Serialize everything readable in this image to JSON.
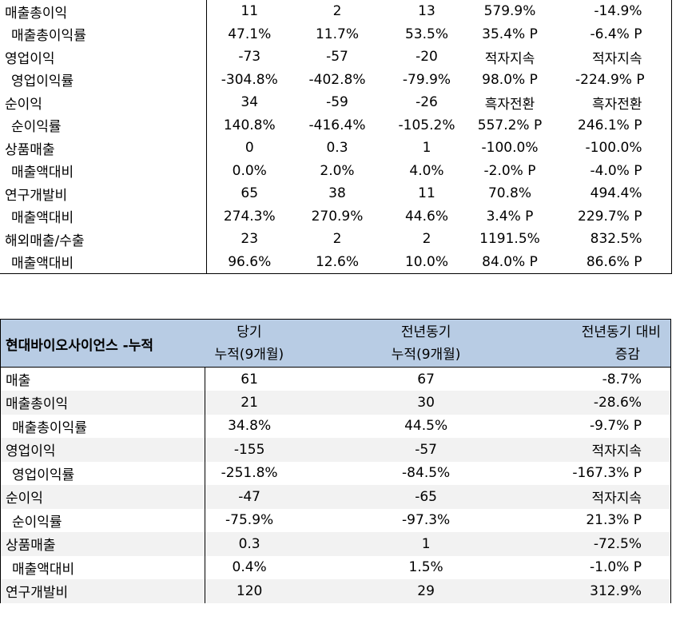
{
  "quarter_rows": [
    {
      "label": "매출총이익",
      "sub": false,
      "v": [
        "11",
        "2",
        "13",
        "579.9%",
        "-14.9%"
      ]
    },
    {
      "label": "매출총이익률",
      "sub": true,
      "v": [
        "47.1%",
        "11.7%",
        "53.5%",
        "35.4% P",
        "-6.4% P"
      ]
    },
    {
      "label": "영업이익",
      "sub": false,
      "v": [
        "-73",
        "-57",
        "-20",
        "적자지속",
        "적자지속"
      ]
    },
    {
      "label": "영업이익률",
      "sub": true,
      "v": [
        "-304.8%",
        "-402.8%",
        "-79.9%",
        "98.0% P",
        "-224.9% P"
      ]
    },
    {
      "label": "순이익",
      "sub": false,
      "v": [
        "34",
        "-59",
        "-26",
        "흑자전환",
        "흑자전환"
      ]
    },
    {
      "label": "순이익률",
      "sub": true,
      "v": [
        "140.8%",
        "-416.4%",
        "-105.2%",
        "557.2% P",
        "246.1% P"
      ]
    },
    {
      "label": "상품매출",
      "sub": false,
      "v": [
        "0",
        "0.3",
        "1",
        "-100.0%",
        "-100.0%"
      ]
    },
    {
      "label": "매출액대비",
      "sub": true,
      "v": [
        "0.0%",
        "2.0%",
        "4.0%",
        "-2.0% P",
        "-4.0% P"
      ]
    },
    {
      "label": "연구개발비",
      "sub": false,
      "v": [
        "65",
        "38",
        "11",
        "70.8%",
        "494.4%"
      ]
    },
    {
      "label": "매출액대비",
      "sub": true,
      "v": [
        "274.3%",
        "270.9%",
        "44.6%",
        "3.4% P",
        "229.7% P"
      ]
    },
    {
      "label": "해외매출/수출",
      "sub": false,
      "v": [
        "23",
        "2",
        "2",
        "1191.5%",
        "832.5%"
      ]
    },
    {
      "label": "매출액대비",
      "sub": true,
      "v": [
        "96.6%",
        "12.6%",
        "10.0%",
        "84.0% P",
        "86.6% P"
      ]
    }
  ],
  "cumulative": {
    "title": "현대바이오사이언스 -누적",
    "header": {
      "col1_line1": "당기",
      "col1_line2": "누적(9개월)",
      "col2_line1": "전년동기",
      "col2_line2": "누적(9개월)",
      "col3_line1": "전년동기 대비",
      "col3_line2": "증감"
    },
    "rows": [
      {
        "label": "매출",
        "sub": false,
        "v": [
          "61",
          "67",
          "-8.7%"
        ]
      },
      {
        "label": "매출총이익",
        "sub": false,
        "v": [
          "21",
          "30",
          "-28.6%"
        ]
      },
      {
        "label": "매출총이익률",
        "sub": true,
        "v": [
          "34.8%",
          "44.5%",
          "-9.7% P"
        ]
      },
      {
        "label": "영업이익",
        "sub": false,
        "v": [
          "-155",
          "-57",
          "적자지속"
        ]
      },
      {
        "label": "영업이익률",
        "sub": true,
        "v": [
          "-251.8%",
          "-84.5%",
          "-167.3% P"
        ]
      },
      {
        "label": "순이익",
        "sub": false,
        "v": [
          "-47",
          "-65",
          "적자지속"
        ]
      },
      {
        "label": "순이익률",
        "sub": true,
        "v": [
          "-75.9%",
          "-97.3%",
          "21.3% P"
        ]
      },
      {
        "label": "상품매출",
        "sub": false,
        "v": [
          "0.3",
          "1",
          "-72.5%"
        ]
      },
      {
        "label": "매출액대비",
        "sub": true,
        "v": [
          "0.4%",
          "1.5%",
          "-1.0% P"
        ]
      },
      {
        "label": "연구개발비",
        "sub": false,
        "v": [
          "120",
          "29",
          "312.9%"
        ]
      }
    ]
  }
}
